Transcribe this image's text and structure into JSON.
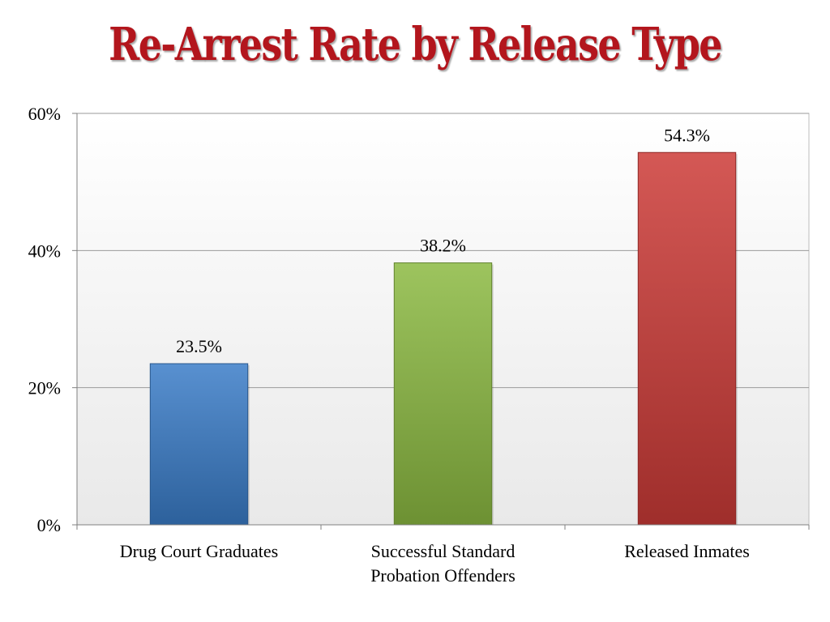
{
  "chart_data": {
    "type": "bar",
    "title": "Re-Arrest Rate by Release Type",
    "categories": [
      [
        "Drug Court Graduates"
      ],
      [
        "Successful Standard",
        "Probation Offenders"
      ],
      [
        "Released Inmates"
      ]
    ],
    "values": [
      23.5,
      38.2,
      54.3
    ],
    "data_labels": [
      "23.5%",
      "38.2%",
      "54.3%"
    ],
    "bar_colors": [
      "#3a7cc8",
      "#8cba42",
      "#cc3b37"
    ],
    "ylim": [
      0,
      60
    ],
    "yticks": [
      0,
      20,
      40,
      60
    ],
    "ytick_labels": [
      "0%",
      "20%",
      "40%",
      "60%"
    ],
    "xlabel": "",
    "ylabel": "",
    "grid": true,
    "legend": "none"
  }
}
